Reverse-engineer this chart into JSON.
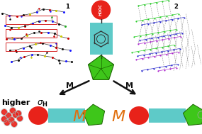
{
  "bg_color": "#ffffff",
  "label1": "1",
  "label2": "2",
  "cyan_color": "#5ecac8",
  "red_color": "#e8221a",
  "green_color": "#3ec61a",
  "orange_color": "#e07010",
  "black": "#111111",
  "hooc_text": "HOOC",
  "higher_text": "higher",
  "sigma_label": "$\\sigma_{\\bf H}$",
  "M_label": "M",
  "green_dark": "#1a6600",
  "dot_red": "#dd1111",
  "dot_gray": "#aaaaaa",
  "struct2_green": "#22cc22",
  "struct2_blue": "#2222cc",
  "struct2_purple": "#aa22cc"
}
